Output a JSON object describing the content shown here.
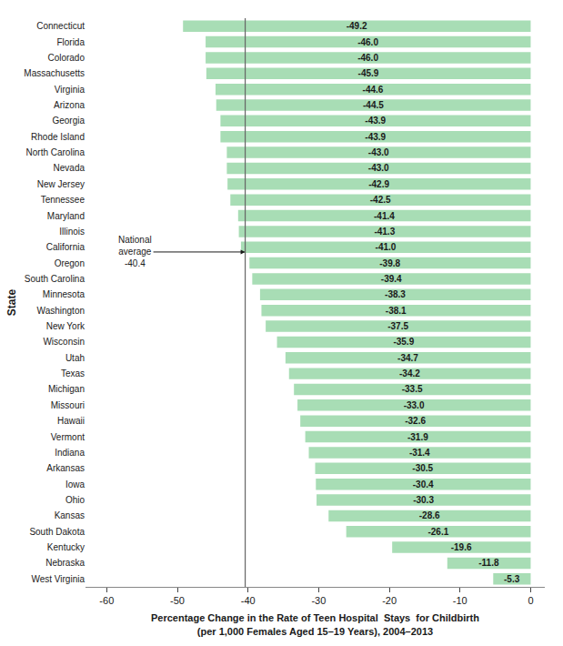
{
  "chart_data": {
    "type": "bar",
    "orientation": "horizontal",
    "categories": [
      "Connecticut",
      "Florida",
      "Colorado",
      "Massachusetts",
      "Virginia",
      "Arizona",
      "Georgia",
      "Rhode Island",
      "North Carolina",
      "Nevada",
      "New Jersey",
      "Tennessee",
      "Maryland",
      "Illinois",
      "California",
      "Oregon",
      "South Carolina",
      "Minnesota",
      "Washington",
      "New York",
      "Wisconsin",
      "Utah",
      "Texas",
      "Michigan",
      "Missouri",
      "Hawaii",
      "Vermont",
      "Indiana",
      "Arkansas",
      "Iowa",
      "Ohio",
      "Kansas",
      "South Dakota",
      "Kentucky",
      "Nebraska",
      "West Virginia"
    ],
    "values": [
      -49.2,
      -46.0,
      -46.0,
      -45.9,
      -44.6,
      -44.5,
      -43.9,
      -43.9,
      -43.0,
      -43.0,
      -42.9,
      -42.5,
      -41.4,
      -41.3,
      -41.0,
      -39.8,
      -39.4,
      -38.3,
      -38.1,
      -37.5,
      -35.9,
      -34.7,
      -34.2,
      -33.5,
      -33.0,
      -32.6,
      -31.9,
      -31.4,
      -30.5,
      -30.4,
      -30.3,
      -28.6,
      -26.1,
      -19.6,
      -11.8,
      -5.3
    ],
    "value_labels": [
      "-49.2",
      "-46.0",
      "-46.0",
      "-45.9",
      "-44.6",
      "-44.5",
      "-43.9",
      "-43.9",
      "-43.0",
      "-43.0",
      "-42.9",
      "-42.5",
      "-41.4",
      "-41.3",
      "-41.0",
      "-39.8",
      "-39.4",
      "-38.3",
      "-38.1",
      "-37.5",
      "-35.9",
      "-34.7",
      "-34.2",
      "-33.5",
      "-33.0",
      "-32.6",
      "-31.9",
      "-31.4",
      "-30.5",
      "-30.4",
      "-30.3",
      "-28.6",
      "-26.1",
      "-19.6",
      "-11.8",
      "-5.3"
    ],
    "data_labels": true,
    "color": "#a8ddb5",
    "national_average": -40.4,
    "annotations": [
      {
        "text": "National\naverage\n-40.4",
        "category": "California"
      }
    ],
    "xlabel": "Percentage Change in the Rate of Teen Hospital  Stays  for Childbirth\n(per 1,000 Females Aged 15–19 Years), 2004–2013",
    "ylabel": "State",
    "xlim": [
      -63,
      2
    ],
    "xticks": [
      -60,
      -50,
      -40,
      -30,
      -20,
      -10,
      0
    ],
    "grid": false
  }
}
